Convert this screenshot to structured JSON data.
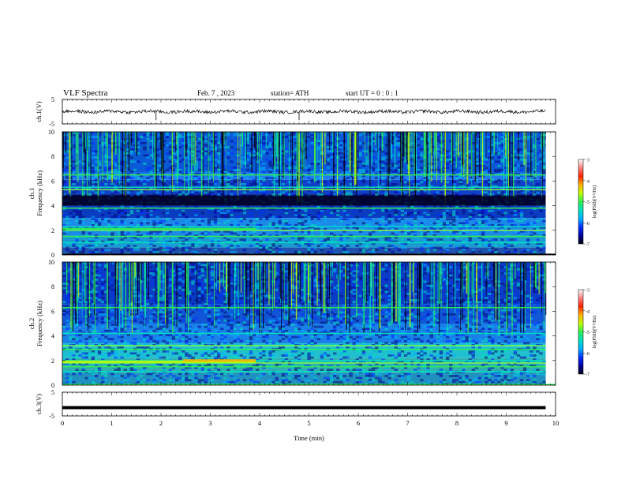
{
  "header": {
    "title": "VLF  Spectra",
    "date": "Feb. 7  , 2023",
    "station": "station= ATH",
    "start_ut": "start  UT  =   0 : 0  : 1"
  },
  "chart_data": [
    {
      "type": "line",
      "panel": "ch1_waveform",
      "ylabel": "ch.1(V)",
      "yticks": [
        "5",
        "-5"
      ],
      "ylim": [
        -5,
        5
      ],
      "x_range_min": [
        0,
        9.8
      ],
      "series": [
        {
          "y_baseline": 0,
          "spikes": [
            1.9,
            4.8
          ]
        }
      ]
    },
    {
      "type": "heatmap",
      "panel": "ch1_spectrogram",
      "ylabel": "ch.1\nFrequency  (kHz)",
      "ylabel_lines": [
        "ch.1",
        "Frequency  (kHz)"
      ],
      "yticks": [
        "0",
        "2",
        "4",
        "6",
        "8",
        "10"
      ],
      "ylim_khz": [
        0,
        10
      ],
      "xlim_min": [
        0,
        10
      ],
      "colorbar": {
        "label": "log(PSD)(V²/Hz)",
        "ticks": [
          "-3",
          "-4",
          "-5",
          "-6",
          "-7"
        ],
        "range": [
          -7,
          -3
        ]
      },
      "features": {
        "lines_khz": [
          6.5,
          5.5,
          5.3,
          3.8,
          2.3,
          2.0,
          1.5,
          1.0
        ],
        "dark_band_khz": [
          4.0,
          4.8
        ]
      }
    },
    {
      "type": "heatmap",
      "panel": "ch2_spectrogram",
      "ylabel_lines": [
        "ch.2",
        "Frequency  (kHz)"
      ],
      "yticks": [
        "0",
        "2",
        "4",
        "6",
        "8",
        "10"
      ],
      "ylim_khz": [
        0,
        10
      ],
      "xlim_min": [
        0,
        10
      ],
      "colorbar": {
        "label": "log(PSD)(V²/Hz)",
        "ticks": [
          "-3",
          "-4",
          "-5",
          "-6",
          "-7"
        ],
        "range": [
          -7,
          -3
        ]
      },
      "features": {
        "lines_khz": [
          6.3,
          4.2,
          3.2,
          2.9,
          2.0,
          1.8,
          1.5,
          1.1
        ]
      }
    },
    {
      "type": "line",
      "panel": "ch3_waveform",
      "ylabel": "ch.3(V)",
      "yticks": [
        "5",
        "-5"
      ],
      "ylim": [
        -5,
        5
      ],
      "x_range_min": [
        0,
        9.8
      ],
      "series": [
        {
          "y_baseline": -1.5
        }
      ]
    }
  ],
  "x_axis": {
    "label": "Time  (min)",
    "ticks": [
      "0",
      "1",
      "2",
      "3",
      "4",
      "5",
      "6",
      "7",
      "8",
      "9",
      "10"
    ],
    "range": [
      0,
      10
    ]
  },
  "colors": {
    "scale": [
      "#000010",
      "#0000a0",
      "#0030ff",
      "#00b0ff",
      "#00e0c0",
      "#30f050",
      "#c0ff00",
      "#ffb000",
      "#ff2000",
      "#ff8080",
      "#ffffff"
    ],
    "waveform": "#000000"
  }
}
